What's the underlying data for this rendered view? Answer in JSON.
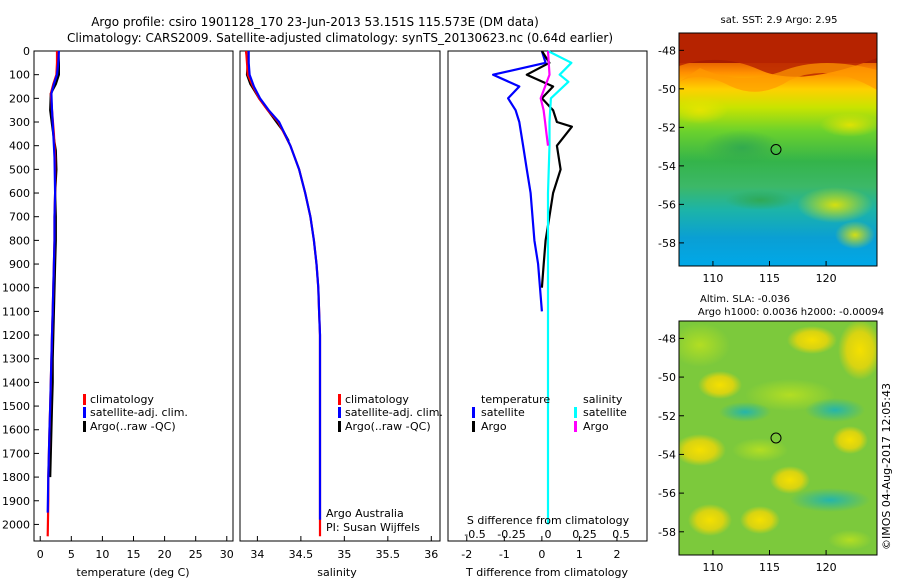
{
  "header": {
    "title_line1": "Argo profile: csiro 1901128_170 23-Jun-2013 53.151S 115.573E (DM data)",
    "title_line2": "Climatology: CARS2009. Satellite-adjusted climatology: synTS_20130623.nc (0.64d earlier)"
  },
  "credits": {
    "vertical": "©IMOS 04-Aug-2017 12:05:43"
  },
  "colors": {
    "climatology": "#ff0000",
    "satellite": "#0000ff",
    "argo": "#000000",
    "salinity_satellite": "#00ffff",
    "salinity_argo": "#ff00ff",
    "profile_marker": "#000000"
  },
  "chart_data": [
    {
      "name": "temperature-profile",
      "type": "line",
      "xlabel": "temperature (deg C)",
      "xlim": [
        -1,
        31
      ],
      "xticks": [
        0,
        5,
        10,
        15,
        20,
        25,
        30
      ],
      "ylim": [
        2070,
        0
      ],
      "yticks": [
        0,
        100,
        200,
        300,
        400,
        500,
        600,
        700,
        800,
        900,
        1000,
        1100,
        1200,
        1300,
        1400,
        1500,
        1600,
        1700,
        1800,
        1900,
        2000
      ],
      "legend": [
        "climatology",
        "satellite-adj. clim.",
        "Argo(..raw -QC)"
      ],
      "series": [
        {
          "name": "Argo(..raw -QC)",
          "color": "#000000",
          "x": [
            2.9,
            3.0,
            3.0,
            2.5,
            1.7,
            1.6,
            1.9,
            2.2,
            2.5,
            2.6,
            2.4,
            2.5,
            2.5,
            2.4,
            2.3,
            2.2,
            2.1,
            2.0,
            2.0,
            1.9,
            1.8,
            1.7,
            1.6
          ],
          "y": [
            0,
            50,
            100,
            140,
            180,
            250,
            310,
            370,
            420,
            500,
            600,
            700,
            800,
            900,
            1000,
            1100,
            1200,
            1300,
            1400,
            1500,
            1600,
            1700,
            1800
          ]
        },
        {
          "name": "climatology",
          "color": "#ff0000",
          "x": [
            2.7,
            2.7,
            2.6,
            2.1,
            1.7,
            1.9,
            2.2,
            2.4,
            2.4,
            2.3,
            2.3,
            2.2,
            2.1,
            2.0,
            1.9,
            1.8,
            1.7,
            1.6,
            1.5,
            1.4,
            1.3,
            1.3,
            1.2
          ],
          "y": [
            0,
            50,
            100,
            140,
            180,
            250,
            350,
            450,
            600,
            700,
            800,
            900,
            1000,
            1100,
            1200,
            1300,
            1400,
            1500,
            1600,
            1700,
            1800,
            1900,
            2050
          ]
        },
        {
          "name": "satellite-adj. clim.",
          "color": "#0000ff",
          "x": [
            3.0,
            2.9,
            2.7,
            2.2,
            1.8,
            1.9,
            2.1,
            2.3,
            2.4,
            2.3,
            2.3,
            2.2,
            2.1,
            2.0,
            1.9,
            1.8,
            1.7,
            1.6,
            1.5,
            1.4,
            1.3,
            1.2
          ],
          "y": [
            0,
            50,
            100,
            140,
            180,
            250,
            350,
            450,
            600,
            700,
            800,
            900,
            1000,
            1100,
            1200,
            1300,
            1400,
            1500,
            1600,
            1700,
            1800,
            1950
          ]
        }
      ]
    },
    {
      "name": "salinity-profile",
      "type": "line",
      "xlabel": "salinity",
      "xlim": [
        33.8,
        36.1
      ],
      "xticks": [
        34,
        34.5,
        35,
        35.5,
        36
      ],
      "ylim": [
        2070,
        0
      ],
      "legend": [
        "climatology",
        "satellite-adj. clim.",
        "Argo(..raw -QC)"
      ],
      "annotation": [
        "Argo Australia",
        "PI: Susan Wijffels"
      ],
      "series": [
        {
          "name": "Argo(..raw -QC)",
          "color": "#000000",
          "x": [
            33.87,
            33.89,
            33.88,
            33.92,
            33.97,
            34.02,
            34.1,
            34.16,
            34.22,
            34.26,
            34.3,
            34.36
          ],
          "y": [
            0,
            50,
            100,
            140,
            170,
            200,
            240,
            270,
            300,
            320,
            340,
            380
          ]
        },
        {
          "name": "climatology",
          "color": "#ff0000",
          "x": [
            33.87,
            33.88,
            33.89,
            33.95,
            34.02,
            34.12,
            34.24,
            34.38,
            34.48,
            34.55,
            34.61,
            34.65,
            34.68,
            34.7,
            34.71,
            34.72,
            34.72,
            34.72,
            34.72,
            34.72,
            34.72
          ],
          "y": [
            0,
            50,
            100,
            150,
            200,
            250,
            300,
            400,
            500,
            600,
            700,
            800,
            900,
            1000,
            1100,
            1200,
            1400,
            1600,
            1800,
            2000,
            2050
          ]
        },
        {
          "name": "satellite-adj. clim.",
          "color": "#0000ff",
          "x": [
            33.9,
            33.9,
            33.91,
            33.96,
            34.03,
            34.13,
            34.25,
            34.38,
            34.48,
            34.55,
            34.61,
            34.65,
            34.68,
            34.7,
            34.71,
            34.72,
            34.72,
            34.72,
            34.72,
            34.72
          ],
          "y": [
            0,
            50,
            100,
            150,
            200,
            250,
            300,
            400,
            500,
            600,
            700,
            800,
            900,
            1000,
            1100,
            1200,
            1400,
            1600,
            1800,
            1980
          ]
        }
      ]
    },
    {
      "name": "difference-profile",
      "type": "line",
      "xlabel": "T difference from climatology",
      "xlabel_top": "S difference from climatology",
      "xlim": [
        -2.5,
        2.8
      ],
      "xticks": [
        -2,
        -1,
        0,
        1,
        2
      ],
      "xticks_top": [
        -0.5,
        -0.25,
        0,
        0.25,
        0.5
      ],
      "xticks_top_labels": [
        "-0.5",
        "-0.25",
        "0",
        "0.25",
        "0.5"
      ],
      "ylim": [
        2070,
        0
      ],
      "legend_temperature": {
        "title": "temperature",
        "items": [
          "satellite",
          "Argo"
        ]
      },
      "legend_salinity": {
        "title": "salinity",
        "items": [
          "satellite",
          "Argo"
        ]
      },
      "series": [
        {
          "name": "temperature satellite",
          "color": "#0000ff",
          "x": [
            0,
            0.1,
            -1.3,
            -0.6,
            -0.9,
            -0.7,
            -0.6,
            -0.5,
            -0.4,
            -0.3,
            -0.25,
            -0.2,
            -0.1,
            -0.05,
            0
          ],
          "y": [
            0,
            50,
            100,
            150,
            200,
            250,
            300,
            400,
            500,
            600,
            700,
            800,
            900,
            1000,
            1100
          ]
        },
        {
          "name": "temperature Argo",
          "color": "#000000",
          "x": [
            0,
            0.2,
            -0.4,
            0.3,
            0.0,
            0.3,
            0.4,
            0.8,
            0.4,
            0.5,
            0.3,
            0.2,
            0.1,
            0.05,
            0.0
          ],
          "y": [
            0,
            50,
            100,
            150,
            200,
            250,
            300,
            320,
            400,
            500,
            600,
            700,
            800,
            900,
            1000
          ]
        },
        {
          "name": "salinity satellite",
          "color": "#00ffff",
          "x": [
            0,
            0.16,
            0.08,
            0.14,
            0.02,
            0.01,
            0.01,
            0,
            0,
            0,
            0,
            0
          ],
          "y": [
            0,
            50,
            100,
            130,
            200,
            300,
            400,
            600,
            800,
            1000,
            1500,
            2000
          ]
        },
        {
          "name": "salinity Argo",
          "color": "#ff00ff",
          "x": [
            0,
            0.01,
            -0.02,
            -0.05,
            -0.03,
            -0.02,
            -0.01,
            0
          ],
          "y": [
            0,
            100,
            150,
            200,
            250,
            300,
            350,
            400
          ]
        }
      ]
    },
    {
      "name": "sst-map",
      "type": "heatmap",
      "title": "sat. SST: 2.9 Argo: 2.95",
      "xlim": [
        107,
        124.5
      ],
      "ylim": [
        -59.2,
        -47.1
      ],
      "xticks": [
        110,
        115,
        120
      ],
      "yticks": [
        -48,
        -50,
        -52,
        -54,
        -56,
        -58
      ],
      "marker": {
        "lon": 115.573,
        "lat": -53.151
      }
    },
    {
      "name": "sla-map",
      "type": "heatmap",
      "title": "Altim. SLA: -0.036",
      "subtitle": "Argo h1000: 0.0036 h2000: -0.00094",
      "xlim": [
        107,
        124.5
      ],
      "ylim": [
        -59.2,
        -47.1
      ],
      "xticks": [
        110,
        115,
        120
      ],
      "yticks": [
        -48,
        -50,
        -52,
        -54,
        -56,
        -58
      ],
      "marker": {
        "lon": 115.573,
        "lat": -53.151
      }
    }
  ]
}
